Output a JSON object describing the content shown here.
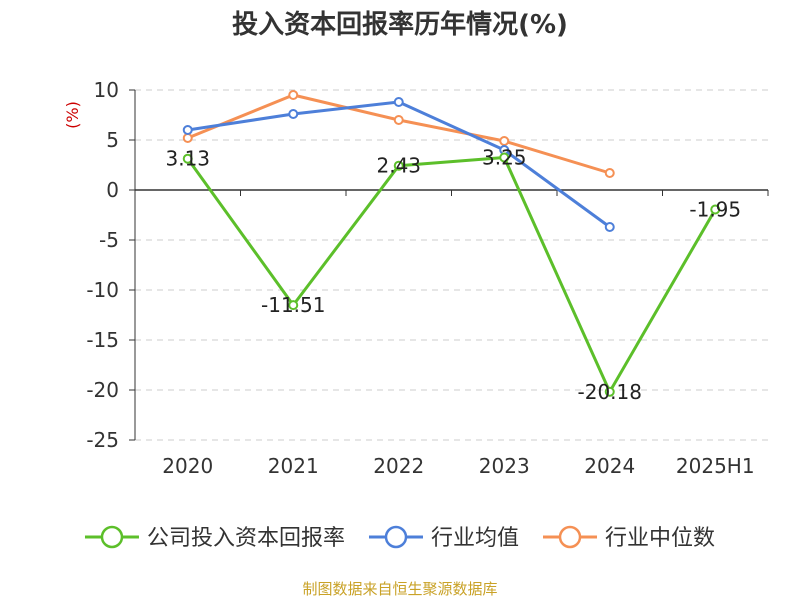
{
  "chart_data": {
    "type": "line",
    "title": "投入资本回报率历年情况(%)",
    "y_unit": "(%)",
    "categories": [
      "2020",
      "2021",
      "2022",
      "2023",
      "2024",
      "2025H1"
    ],
    "ylim": [
      -25,
      10
    ],
    "ytick_step": 5,
    "grid": true,
    "legend_position": "bottom",
    "series": [
      {
        "name": "公司投入资本回报率",
        "color": "#5cbf2a",
        "values": [
          3.13,
          -11.51,
          2.43,
          3.25,
          -20.18,
          -1.95
        ],
        "labels": [
          "3.13",
          "-11.51",
          "2.43",
          "3.25",
          "-20.18",
          "-1.95"
        ]
      },
      {
        "name": "行业均值",
        "color": "#4d7fd9",
        "values": [
          6.0,
          7.6,
          8.8,
          4.0,
          -3.7,
          null
        ]
      },
      {
        "name": "行业中位数",
        "color": "#f59054",
        "values": [
          5.2,
          9.5,
          7.0,
          4.9,
          1.7,
          null
        ]
      }
    ]
  },
  "source": "制图数据来自恒生聚源数据库",
  "unit_color": "#cc0000"
}
